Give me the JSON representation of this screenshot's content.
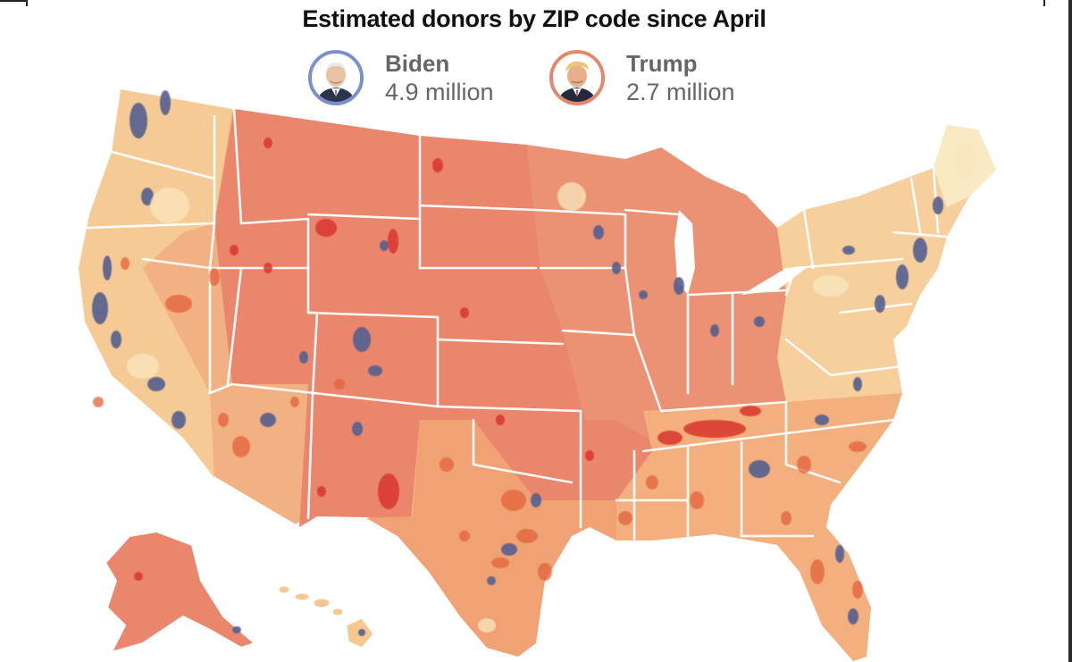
{
  "title": "Estimated donors by ZIP code since April",
  "legend": [
    {
      "name": "Biden",
      "count": "4.9 million",
      "ring_color": "#7b8fcf",
      "icon": "biden-portrait"
    },
    {
      "name": "Trump",
      "count": "2.7 million",
      "ring_color": "#e4866a",
      "icon": "trump-portrait"
    }
  ],
  "colors": {
    "biden_blue": "#55608f",
    "trump_heavy": "#d9352e",
    "trump_mid": "#e2623b",
    "trump_light": "#f4c58d",
    "mixed_light": "#f9e7bf",
    "border": "#ffffff"
  }
}
